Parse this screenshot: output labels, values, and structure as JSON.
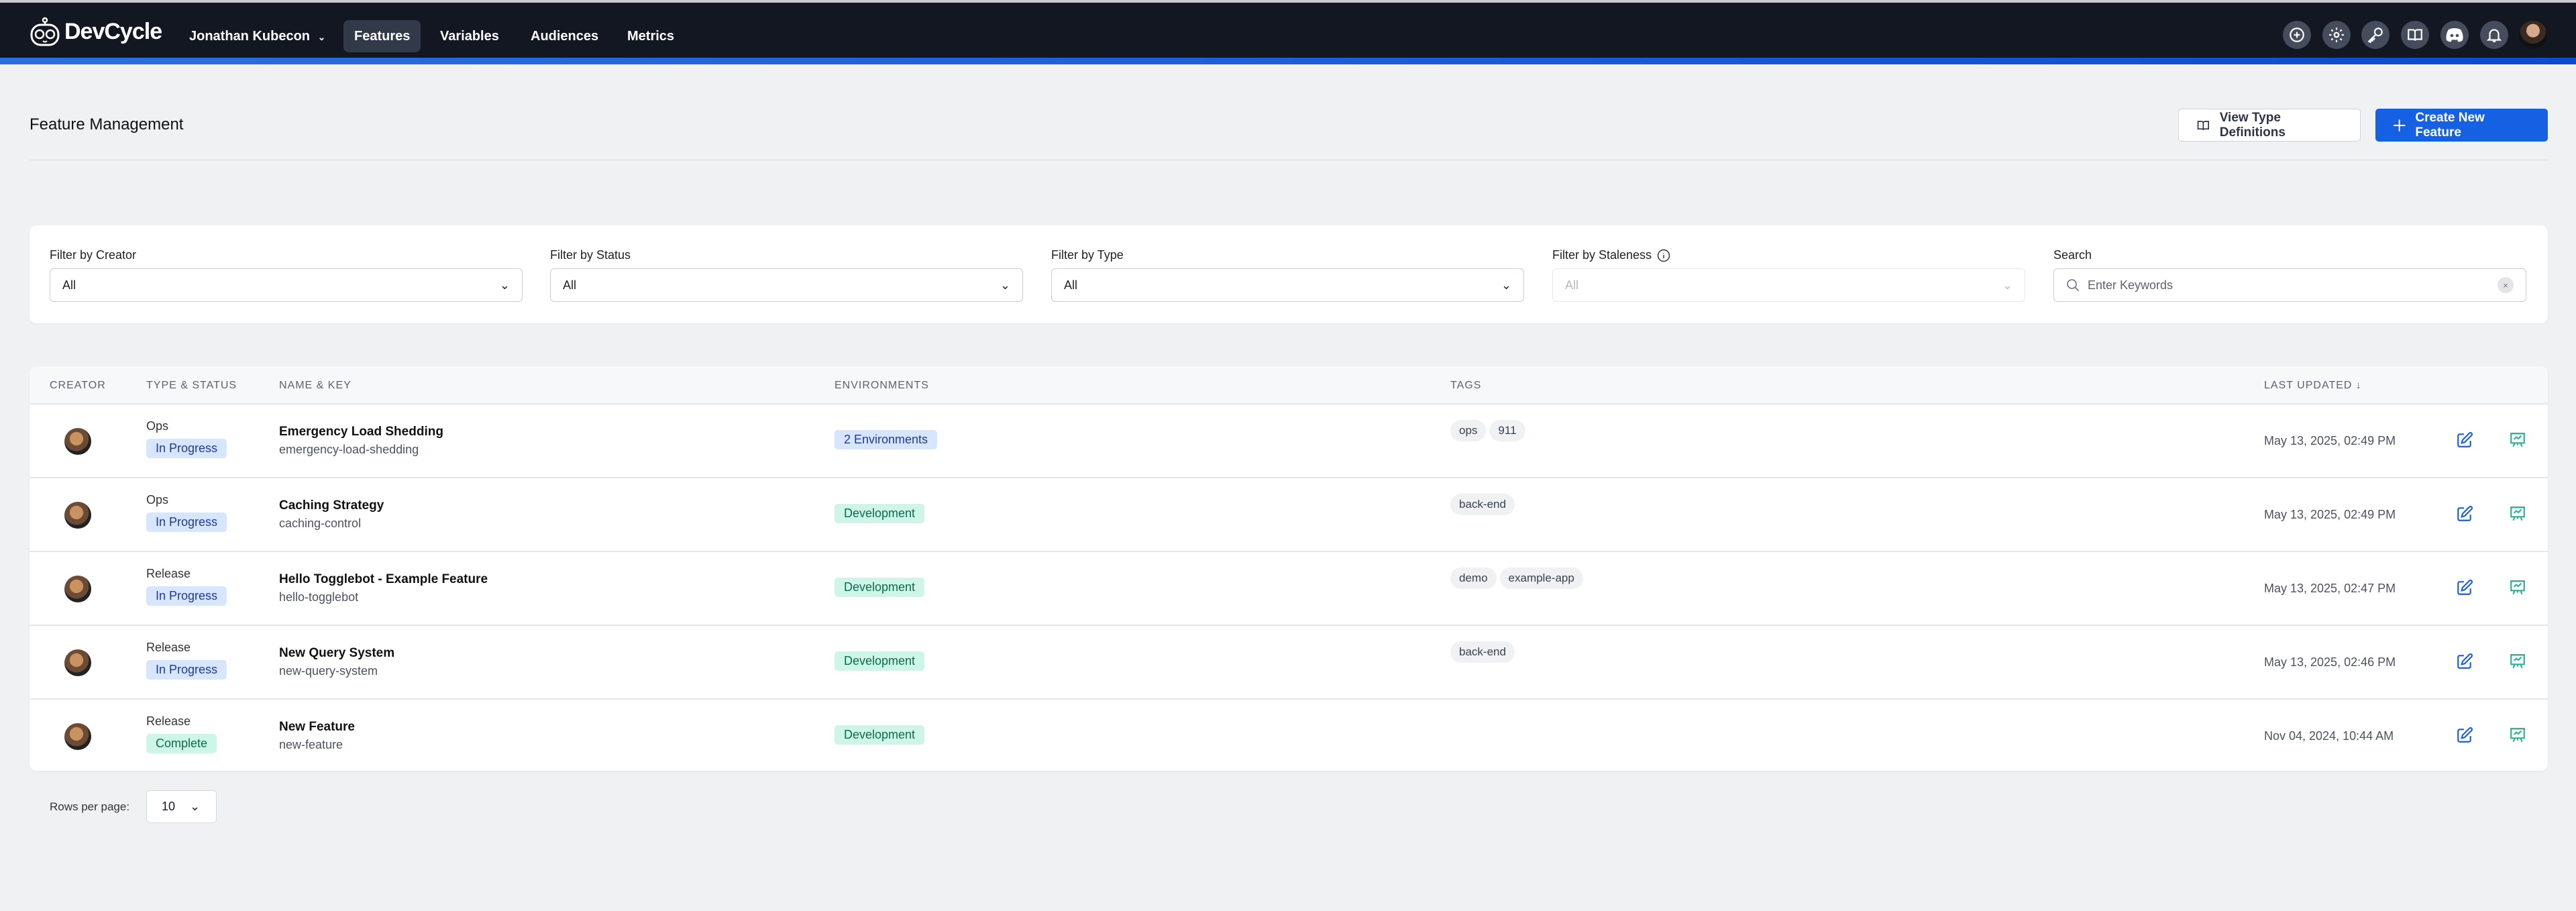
{
  "nav": {
    "brand": "DevCycle",
    "org": "Jonathan Kubecon",
    "items": [
      {
        "label": "Features",
        "active": true
      },
      {
        "label": "Variables"
      },
      {
        "label": "Audiences"
      },
      {
        "label": "Metrics"
      }
    ],
    "icons": [
      "plus-circle-icon",
      "gear-icon",
      "key-icon",
      "book-icon",
      "discord-icon",
      "bell-icon"
    ]
  },
  "page": {
    "title": "Feature Management",
    "view_types_label": "View Type Definitions",
    "create_label": "Create New Feature",
    "accent": "#1560e3"
  },
  "filters": [
    {
      "label": "Filter by Creator",
      "value": "All"
    },
    {
      "label": "Filter by Status",
      "value": "All"
    },
    {
      "label": "Filter by Type",
      "value": "All"
    },
    {
      "label": "Filter by Staleness",
      "value": "All",
      "disabled": true
    }
  ],
  "search": {
    "label": "Search",
    "placeholder": "Enter Keywords"
  },
  "table": {
    "headers": {
      "creator": "CREATOR",
      "type_status": "TYPE & STATUS",
      "name_key": "NAME & KEY",
      "environments": "ENVIRONMENTS",
      "tags": "TAGS",
      "last_updated": "LAST UPDATED"
    },
    "rows": [
      {
        "type": "Ops",
        "status": "In Progress",
        "name": "Emergency Load Shedding",
        "key": "emergency-load-shedding",
        "env": "2 Environments",
        "tags": [
          "ops",
          "911"
        ],
        "updated": "May 13, 2025, 02:49 PM"
      },
      {
        "type": "Ops",
        "status": "In Progress",
        "name": "Caching Strategy",
        "key": "caching-control",
        "env": "Development",
        "tags": [
          "back-end"
        ],
        "updated": "May 13, 2025, 02:49 PM"
      },
      {
        "type": "Release",
        "status": "In Progress",
        "name": "Hello Togglebot - Example Feature",
        "key": "hello-togglebot",
        "env": "Development",
        "tags": [
          "demo",
          "example-app"
        ],
        "updated": "May 13, 2025, 02:47 PM"
      },
      {
        "type": "Release",
        "status": "In Progress",
        "name": "New Query System",
        "key": "new-query-system",
        "env": "Development",
        "tags": [
          "back-end"
        ],
        "updated": "May 13, 2025, 02:46 PM"
      },
      {
        "type": "Release",
        "status": "Complete",
        "name": "New Feature",
        "key": "new-feature",
        "env": "Development",
        "tags": [],
        "updated": "Nov 04, 2024, 10:44 AM"
      }
    ]
  },
  "pagination": {
    "rows_per_page_label": "Rows per page:",
    "rows_per_page": "10"
  }
}
